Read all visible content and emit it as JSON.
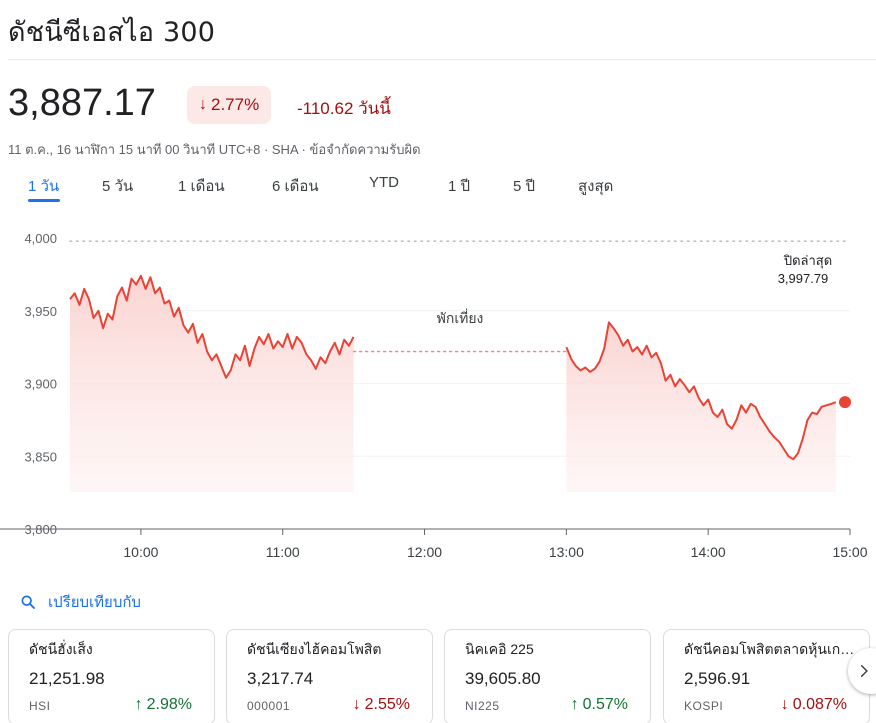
{
  "header": {
    "title": "ดัชนีซีเอสไอ 300"
  },
  "quote": {
    "price": "3,887.17",
    "change_percent": "2.77%",
    "change_abs": "-110.62 วันนี้",
    "meta": "11 ต.ค., 16 นาฬิกา 15 นาที 00 วินาที UTC+8 · SHA · ข้อจำกัดความรับผิด",
    "direction_icon": "arrow-down-icon"
  },
  "tabs": [
    {
      "label": "1 วัน",
      "active": true
    },
    {
      "label": "5 วัน",
      "active": false
    },
    {
      "label": "1 เดือน",
      "active": false
    },
    {
      "label": "6 เดือน",
      "active": false
    },
    {
      "label": "YTD",
      "active": false
    },
    {
      "label": "1 ปี",
      "active": false
    },
    {
      "label": "5 ปี",
      "active": false
    },
    {
      "label": "สูงสุด",
      "active": false
    }
  ],
  "chart_data": {
    "type": "line",
    "title": "",
    "xlabel": "",
    "ylabel": "",
    "ylim": [
      3800,
      4000
    ],
    "xlim": [
      "09:30",
      "15:00"
    ],
    "y_ticks": [
      "4,000",
      "3,950",
      "3,900",
      "3,850",
      "3,800"
    ],
    "x_ticks": [
      "10:00",
      "11:00",
      "12:00",
      "13:00",
      "14:00",
      "15:00"
    ],
    "previous_close": {
      "label": "ปิดล่าสุด",
      "value": 3997.79,
      "value_label": "3,997.79"
    },
    "lunch_break": {
      "label": "พักเที่ยง",
      "from": "11:30",
      "to": "13:00",
      "level": 3922
    },
    "grid": true,
    "colors": {
      "line": "#ea4335",
      "fill_top": "#fad2cf",
      "fill_bottom": "#fdf1f0",
      "grid": "#f1f3f4",
      "prev_close": "#bdc1c6"
    },
    "series": [
      {
        "morning": [
          [
            "09:30",
            3958
          ],
          [
            "09:32",
            3962
          ],
          [
            "09:34",
            3954
          ],
          [
            "09:36",
            3965
          ],
          [
            "09:38",
            3958
          ],
          [
            "09:40",
            3945
          ],
          [
            "09:42",
            3950
          ],
          [
            "09:44",
            3938
          ],
          [
            "09:46",
            3948
          ],
          [
            "09:48",
            3944
          ],
          [
            "09:50",
            3960
          ],
          [
            "09:52",
            3966
          ],
          [
            "09:54",
            3957
          ],
          [
            "09:56",
            3972
          ],
          [
            "09:58",
            3968
          ],
          [
            "10:00",
            3974
          ],
          [
            "10:02",
            3965
          ],
          [
            "10:04",
            3973
          ],
          [
            "10:06",
            3962
          ],
          [
            "10:08",
            3966
          ],
          [
            "10:10",
            3955
          ],
          [
            "10:12",
            3957
          ],
          [
            "10:14",
            3946
          ],
          [
            "10:16",
            3952
          ],
          [
            "10:18",
            3940
          ],
          [
            "10:20",
            3935
          ],
          [
            "10:22",
            3941
          ],
          [
            "10:24",
            3928
          ],
          [
            "10:26",
            3934
          ],
          [
            "10:28",
            3922
          ],
          [
            "10:30",
            3916
          ],
          [
            "10:32",
            3920
          ],
          [
            "10:34",
            3912
          ],
          [
            "10:36",
            3904
          ],
          [
            "10:38",
            3909
          ],
          [
            "10:40",
            3920
          ],
          [
            "10:42",
            3916
          ],
          [
            "10:44",
            3926
          ],
          [
            "10:46",
            3912
          ],
          [
            "10:48",
            3924
          ],
          [
            "10:50",
            3932
          ],
          [
            "10:52",
            3927
          ],
          [
            "10:54",
            3934
          ],
          [
            "10:56",
            3924
          ],
          [
            "10:58",
            3929
          ],
          [
            "11:00",
            3925
          ],
          [
            "11:02",
            3934
          ],
          [
            "11:04",
            3924
          ],
          [
            "11:06",
            3932
          ],
          [
            "11:08",
            3928
          ],
          [
            "11:10",
            3920
          ],
          [
            "11:12",
            3916
          ],
          [
            "11:14",
            3910
          ],
          [
            "11:16",
            3918
          ],
          [
            "11:18",
            3914
          ],
          [
            "11:20",
            3922
          ],
          [
            "11:22",
            3928
          ],
          [
            "11:24",
            3920
          ],
          [
            "11:26",
            3930
          ],
          [
            "11:28",
            3926
          ],
          [
            "11:30",
            3932
          ]
        ],
        "afternoon": [
          [
            "13:00",
            3925
          ],
          [
            "13:02",
            3917
          ],
          [
            "13:04",
            3912
          ],
          [
            "13:06",
            3909
          ],
          [
            "13:08",
            3911
          ],
          [
            "13:10",
            3908
          ],
          [
            "13:12",
            3910
          ],
          [
            "13:14",
            3915
          ],
          [
            "13:16",
            3924
          ],
          [
            "13:18",
            3942
          ],
          [
            "13:20",
            3938
          ],
          [
            "13:22",
            3933
          ],
          [
            "13:24",
            3926
          ],
          [
            "13:26",
            3930
          ],
          [
            "13:28",
            3922
          ],
          [
            "13:30",
            3925
          ],
          [
            "13:32",
            3920
          ],
          [
            "13:34",
            3926
          ],
          [
            "13:36",
            3918
          ],
          [
            "13:38",
            3921
          ],
          [
            "13:40",
            3914
          ],
          [
            "13:42",
            3902
          ],
          [
            "13:44",
            3906
          ],
          [
            "13:46",
            3898
          ],
          [
            "13:48",
            3903
          ],
          [
            "13:50",
            3899
          ],
          [
            "13:52",
            3894
          ],
          [
            "13:54",
            3898
          ],
          [
            "13:56",
            3890
          ],
          [
            "13:58",
            3885
          ],
          [
            "14:00",
            3889
          ],
          [
            "14:02",
            3880
          ],
          [
            "14:04",
            3877
          ],
          [
            "14:06",
            3882
          ],
          [
            "14:08",
            3872
          ],
          [
            "14:10",
            3869
          ],
          [
            "14:12",
            3875
          ],
          [
            "14:14",
            3885
          ],
          [
            "14:16",
            3880
          ],
          [
            "14:18",
            3886
          ],
          [
            "14:20",
            3884
          ],
          [
            "14:22",
            3877
          ],
          [
            "14:24",
            3872
          ],
          [
            "14:26",
            3867
          ],
          [
            "14:28",
            3863
          ],
          [
            "14:30",
            3860
          ],
          [
            "14:32",
            3855
          ],
          [
            "14:34",
            3850
          ],
          [
            "14:36",
            3848
          ],
          [
            "14:38",
            3852
          ],
          [
            "14:40",
            3862
          ],
          [
            "14:42",
            3875
          ],
          [
            "14:44",
            3880
          ],
          [
            "14:46",
            3879
          ],
          [
            "14:48",
            3884
          ],
          [
            "14:50",
            3885
          ],
          [
            "14:52",
            3886
          ],
          [
            "14:54",
            3887.17
          ]
        ]
      }
    ]
  },
  "compare": {
    "label": "เปรียบเทียบกับ",
    "icon": "search-icon"
  },
  "cards": [
    {
      "name": "ดัชนีฮั่งเส็ง",
      "value": "21,251.98",
      "symbol": "HSI",
      "change": "2.98%",
      "dir": "up"
    },
    {
      "name": "ดัชนีเซียงไฮ้คอมโพสิต",
      "value": "3,217.74",
      "symbol": "000001",
      "change": "2.55%",
      "dir": "down"
    },
    {
      "name": "นิคเคอิ 225",
      "value": "39,605.80",
      "symbol": "NI225",
      "change": "0.57%",
      "dir": "up"
    },
    {
      "name": "ดัชนีคอมโพสิตตลาดหุ้นเกาหลี",
      "value": "2,596.91",
      "symbol": "KOSPI",
      "change": "0.087%",
      "dir": "down"
    }
  ],
  "colors": {
    "up": "#137333",
    "down": "#a50e0e",
    "accent": "#1a73e8"
  }
}
